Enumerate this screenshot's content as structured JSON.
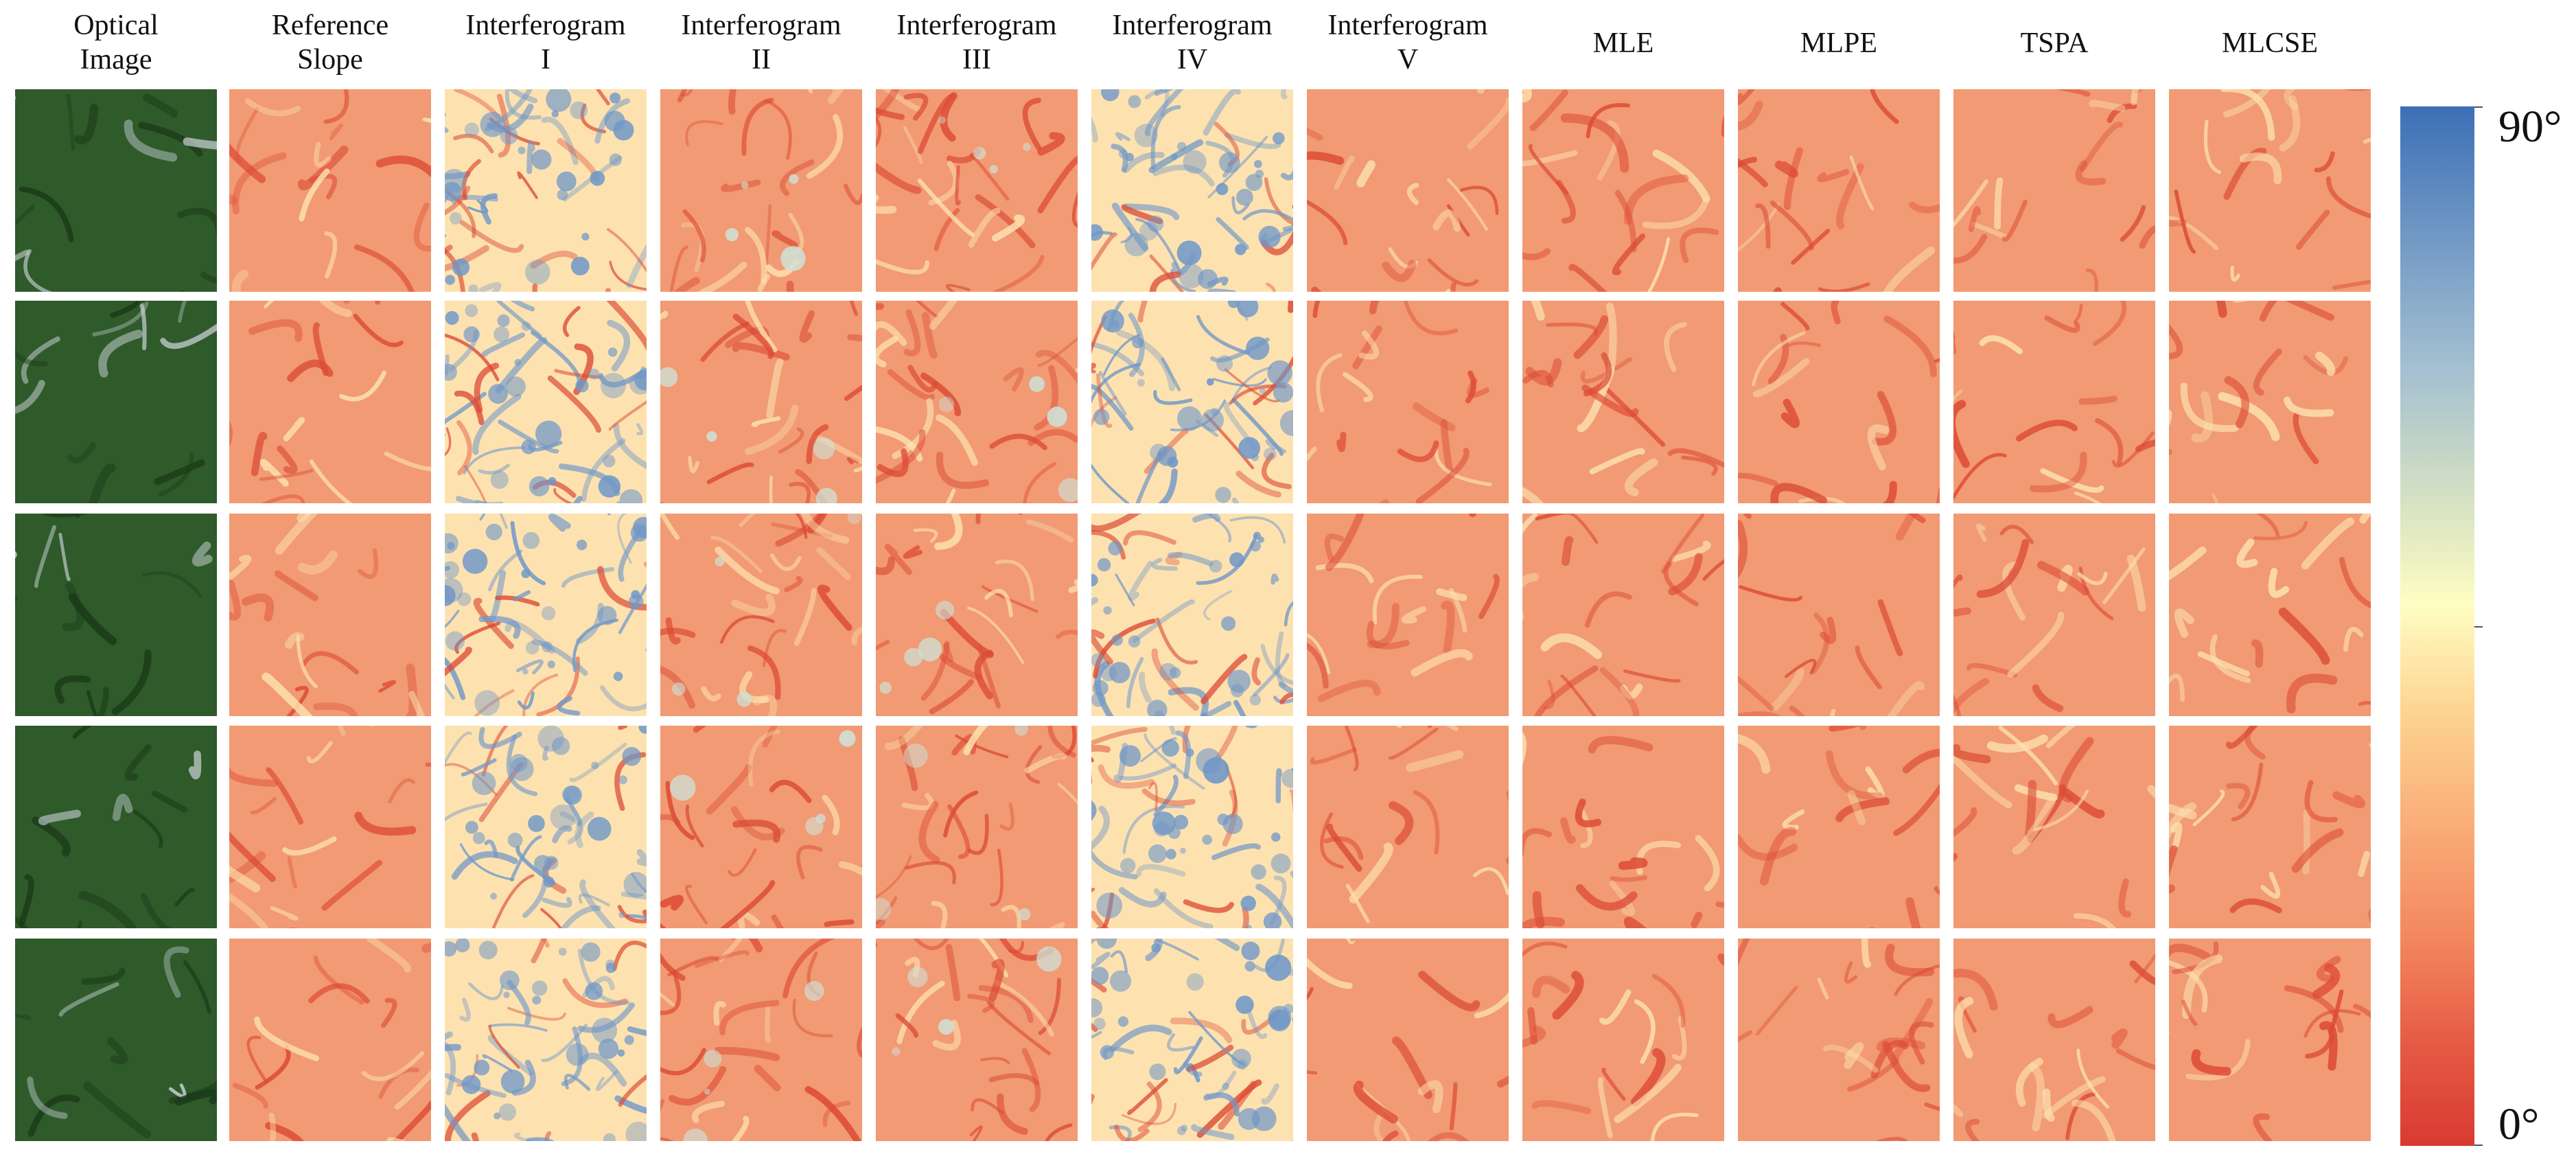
{
  "columns": [
    {
      "id": "optical",
      "line1": "Optical",
      "line2": "Image",
      "kind": "optical"
    },
    {
      "id": "reference",
      "line1": "Reference",
      "line2": "Slope",
      "kind": "smooth"
    },
    {
      "id": "ifg1",
      "line1": "Interferogram",
      "line2": "I",
      "kind": "noisy"
    },
    {
      "id": "ifg2",
      "line1": "Interferogram",
      "line2": "II",
      "kind": "medium"
    },
    {
      "id": "ifg3",
      "line1": "Interferogram",
      "line2": "III",
      "kind": "medium"
    },
    {
      "id": "ifg4",
      "line1": "Interferogram",
      "line2": "IV",
      "kind": "noisy"
    },
    {
      "id": "ifg5",
      "line1": "Interferogram",
      "line2": "V",
      "kind": "smooth"
    },
    {
      "id": "mle",
      "line1": "MLE",
      "line2": "",
      "kind": "smooth"
    },
    {
      "id": "mlpe",
      "line1": "MLPE",
      "line2": "",
      "kind": "smooth"
    },
    {
      "id": "tspa",
      "line1": "TSPA",
      "line2": "",
      "kind": "smooth"
    },
    {
      "id": "mlcse",
      "line1": "MLCSE",
      "line2": "",
      "kind": "smooth"
    }
  ],
  "row_count": 5,
  "colorbar": {
    "max_label": "90°",
    "min_label": "0°",
    "colors": [
      "#d93a30",
      "#f3875e",
      "#fdd592",
      "#fffdc2",
      "#a3bfd1",
      "#6f97c4",
      "#3c6fb6"
    ]
  },
  "palette": {
    "low": "#dc4a34",
    "mid_low": "#f19a73",
    "mid": "#fde2b0",
    "high_pale": "#cfe0d6",
    "high": "#6f97c8",
    "optical_dark": "#1a3a18",
    "optical_mid": "#2f5a2a",
    "optical_light": "#c9d2d8"
  }
}
